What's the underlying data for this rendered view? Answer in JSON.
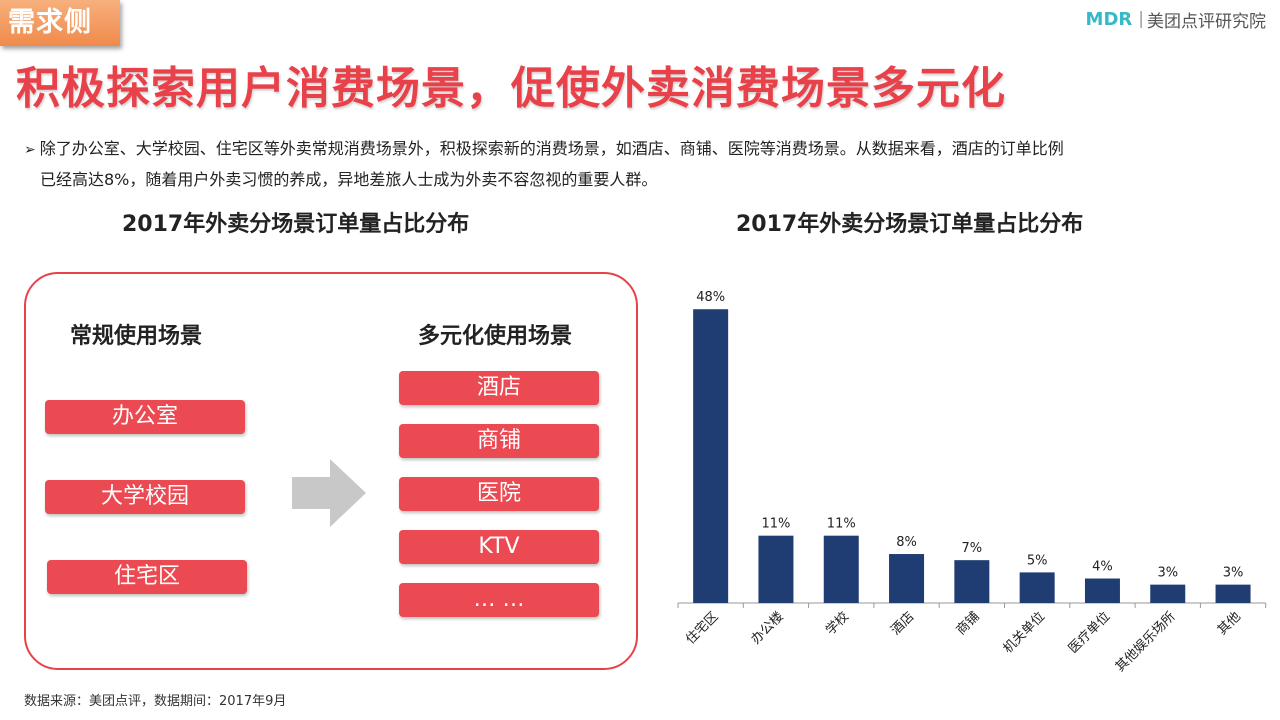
{
  "header": {
    "tag": "需求侧",
    "logo_mark": "MDR",
    "logo_sep": "|",
    "logo_text": "美团点评研究院",
    "headline": "积极探索用户消费场景，促使外卖消费场景多元化"
  },
  "description": {
    "bullet": "➢",
    "line1": "除了办公室、大学校园、住宅区等外卖常规消费场景外，积极探索新的消费场景，如酒店、商铺、医院等消费场景。从数据来看，酒店的订单比例",
    "line2": "已经高达8%，随着用户外卖习惯的养成，异地差旅人士成为外卖不容忽视的重要人群。"
  },
  "left_panel": {
    "title": "2017年外卖分场景订单量占比分布",
    "regular_heading": "常规使用场景",
    "regular_items": [
      "办公室",
      "大学校园",
      "住宅区"
    ],
    "diverse_heading": "多元化使用场景",
    "diverse_items": [
      "酒店",
      "商铺",
      "医院",
      "KTV",
      "… …"
    ],
    "pill_color": "#ec4a52",
    "arrow_color": "#c8c8c8"
  },
  "chart_data": {
    "type": "bar",
    "title": "2017年外卖分场景订单量占比分布",
    "categories": [
      "住宅区",
      "办公楼",
      "学校",
      "酒店",
      "商铺",
      "机关单位",
      "医疗单位",
      "其他娱乐场所",
      "其他"
    ],
    "values": [
      48,
      11,
      11,
      8,
      7,
      5,
      4,
      3,
      3
    ],
    "data_labels": [
      "48%",
      "11%",
      "11%",
      "8%",
      "7%",
      "5%",
      "4%",
      "3%",
      "3%"
    ],
    "ylim": [
      0,
      50
    ],
    "bar_color": "#1f3c73",
    "grid": false,
    "legend": "none"
  },
  "footer": {
    "source": "数据来源：美团点评，数据期间：2017年9月"
  }
}
